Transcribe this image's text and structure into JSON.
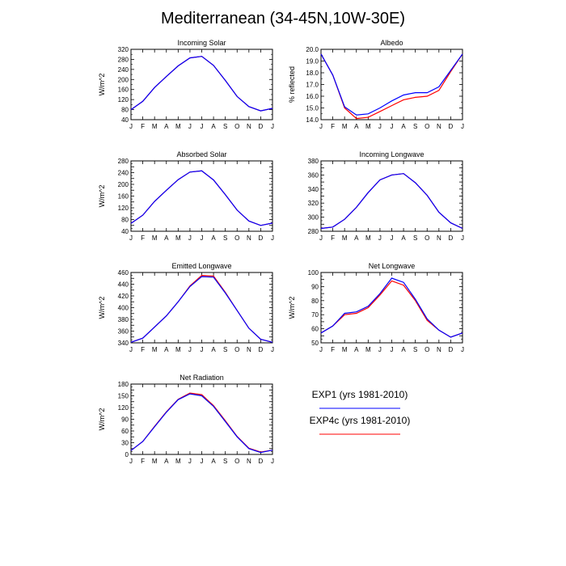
{
  "page": {
    "title": "Mediterranean (34-45N,10W-30E)"
  },
  "chart_data": [
    {
      "type": "line",
      "title": "Incoming Solar",
      "ylabel": "W/m^2",
      "xlabel": "",
      "categories": [
        "J",
        "F",
        "M",
        "A",
        "M",
        "J",
        "J",
        "A",
        "S",
        "O",
        "N",
        "D",
        "J"
      ],
      "ylim": [
        40,
        320
      ],
      "yticks": [
        40,
        80,
        120,
        160,
        200,
        240,
        280,
        320
      ],
      "series": [
        {
          "name": "EXP1 (yrs 1981-2010)",
          "color": "#0000ff",
          "values": [
            80,
            113,
            168,
            212,
            254,
            286,
            292,
            256,
            196,
            132,
            92,
            75,
            85
          ]
        },
        {
          "name": "EXP4c (yrs 1981-2010)",
          "color": "#ff0000",
          "values": [
            80,
            113,
            168,
            212,
            254,
            286,
            292,
            256,
            196,
            132,
            92,
            75,
            85
          ]
        }
      ]
    },
    {
      "type": "line",
      "title": "Albedo",
      "ylabel": "% reflected",
      "xlabel": "",
      "categories": [
        "J",
        "F",
        "M",
        "A",
        "M",
        "J",
        "J",
        "A",
        "S",
        "O",
        "N",
        "D",
        "J"
      ],
      "ylim": [
        14.0,
        20.0
      ],
      "yticks": [
        14.0,
        15.0,
        16.0,
        17.0,
        18.0,
        19.0,
        20.0
      ],
      "series": [
        {
          "name": "EXP1 (yrs 1981-2010)",
          "color": "#0000ff",
          "values": [
            19.6,
            17.8,
            15.1,
            14.4,
            14.5,
            15.0,
            15.6,
            16.1,
            16.3,
            16.3,
            16.8,
            18.2,
            19.6
          ]
        },
        {
          "name": "EXP4c (yrs 1981-2010)",
          "color": "#ff0000",
          "values": [
            19.6,
            17.8,
            15.0,
            14.1,
            14.2,
            14.7,
            15.2,
            15.7,
            15.9,
            16.0,
            16.5,
            18.1,
            19.6
          ]
        }
      ]
    },
    {
      "type": "line",
      "title": "Absorbed Solar",
      "ylabel": "W/m^2",
      "xlabel": "",
      "categories": [
        "J",
        "F",
        "M",
        "A",
        "M",
        "J",
        "J",
        "A",
        "S",
        "O",
        "N",
        "D",
        "J"
      ],
      "ylim": [
        40,
        280
      ],
      "yticks": [
        40,
        60,
        80,
        100,
        120,
        140,
        160,
        180,
        200,
        220,
        240,
        260,
        280
      ],
      "series": [
        {
          "name": "EXP1 (yrs 1981-2010)",
          "color": "#0000ff",
          "values": [
            67,
            95,
            142,
            180,
            216,
            242,
            246,
            215,
            165,
            112,
            75,
            60,
            68
          ]
        },
        {
          "name": "EXP4c (yrs 1981-2010)",
          "color": "#ff0000",
          "values": [
            67,
            95,
            142,
            180,
            216,
            242,
            246,
            215,
            165,
            112,
            75,
            60,
            68
          ]
        }
      ]
    },
    {
      "type": "line",
      "title": "Incoming Longwave",
      "ylabel": "",
      "xlabel": "",
      "categories": [
        "J",
        "F",
        "M",
        "A",
        "M",
        "J",
        "J",
        "A",
        "S",
        "O",
        "N",
        "D",
        "J"
      ],
      "ylim": [
        280,
        380
      ],
      "yticks": [
        280,
        290,
        300,
        310,
        320,
        330,
        340,
        350,
        360,
        370,
        380
      ],
      "series": [
        {
          "name": "EXP1 (yrs 1981-2010)",
          "color": "#0000ff",
          "values": [
            284,
            286,
            297,
            314,
            335,
            353,
            360,
            362,
            349,
            331,
            307,
            292,
            284
          ]
        },
        {
          "name": "EXP4c (yrs 1981-2010)",
          "color": "#ff0000",
          "values": [
            284,
            286,
            297,
            314,
            335,
            353,
            360,
            362,
            349,
            331,
            307,
            292,
            284
          ]
        }
      ]
    },
    {
      "type": "line",
      "title": "Emitted Longwave",
      "ylabel": "W/m^2",
      "xlabel": "",
      "categories": [
        "J",
        "F",
        "M",
        "A",
        "M",
        "J",
        "J",
        "A",
        "S",
        "O",
        "N",
        "D",
        "J"
      ],
      "ylim": [
        340,
        460
      ],
      "yticks": [
        340,
        350,
        360,
        370,
        380,
        390,
        400,
        410,
        420,
        430,
        440,
        450,
        460
      ],
      "series": [
        {
          "name": "EXP1 (yrs 1981-2010)",
          "color": "#0000ff",
          "values": [
            341,
            348,
            367,
            386,
            410,
            436,
            453,
            452,
            425,
            395,
            365,
            346,
            341
          ]
        },
        {
          "name": "EXP4c (yrs 1981-2010)",
          "color": "#ff0000",
          "values": [
            341,
            348,
            367,
            386,
            410,
            437,
            455,
            454,
            426,
            395,
            365,
            346,
            341
          ]
        }
      ]
    },
    {
      "type": "line",
      "title": "Net Longwave",
      "ylabel": "W/m^2",
      "xlabel": "",
      "categories": [
        "J",
        "F",
        "M",
        "A",
        "M",
        "J",
        "J",
        "A",
        "S",
        "O",
        "N",
        "D",
        "J"
      ],
      "ylim": [
        50,
        100
      ],
      "yticks": [
        50,
        55,
        60,
        65,
        70,
        75,
        80,
        85,
        90,
        95,
        100
      ],
      "series": [
        {
          "name": "EXP1 (yrs 1981-2010)",
          "color": "#0000ff",
          "values": [
            57,
            62,
            71,
            72,
            76,
            85,
            96,
            93,
            81,
            67,
            59,
            54,
            57
          ]
        },
        {
          "name": "EXP4c (yrs 1981-2010)",
          "color": "#ff0000",
          "values": [
            57,
            62,
            70,
            71,
            75,
            84,
            94,
            91,
            80,
            66,
            59,
            54,
            57
          ]
        }
      ]
    },
    {
      "type": "line",
      "title": "Net Radiation",
      "ylabel": "W/m^2",
      "xlabel": "",
      "categories": [
        "J",
        "F",
        "M",
        "A",
        "M",
        "J",
        "J",
        "A",
        "S",
        "O",
        "N",
        "D",
        "J"
      ],
      "ylim": [
        0,
        180
      ],
      "yticks": [
        0,
        15,
        30,
        45,
        60,
        75,
        90,
        105,
        120,
        135,
        150,
        165,
        180
      ],
      "series": [
        {
          "name": "EXP1 (yrs 1981-2010)",
          "color": "#0000ff",
          "values": [
            10,
            33,
            71,
            108,
            140,
            155,
            150,
            123,
            84,
            45,
            15,
            5,
            11
          ]
        },
        {
          "name": "EXP4c (yrs 1981-2010)",
          "color": "#ff0000",
          "values": [
            10,
            33,
            72,
            109,
            141,
            157,
            153,
            125,
            86,
            46,
            16,
            6,
            11
          ]
        }
      ]
    }
  ],
  "legend": {
    "items": [
      {
        "label": "EXP1 (yrs 1981-2010)",
        "color": "#0000ff"
      },
      {
        "label": "EXP4c (yrs 1981-2010)",
        "color": "#ff0000"
      }
    ]
  }
}
